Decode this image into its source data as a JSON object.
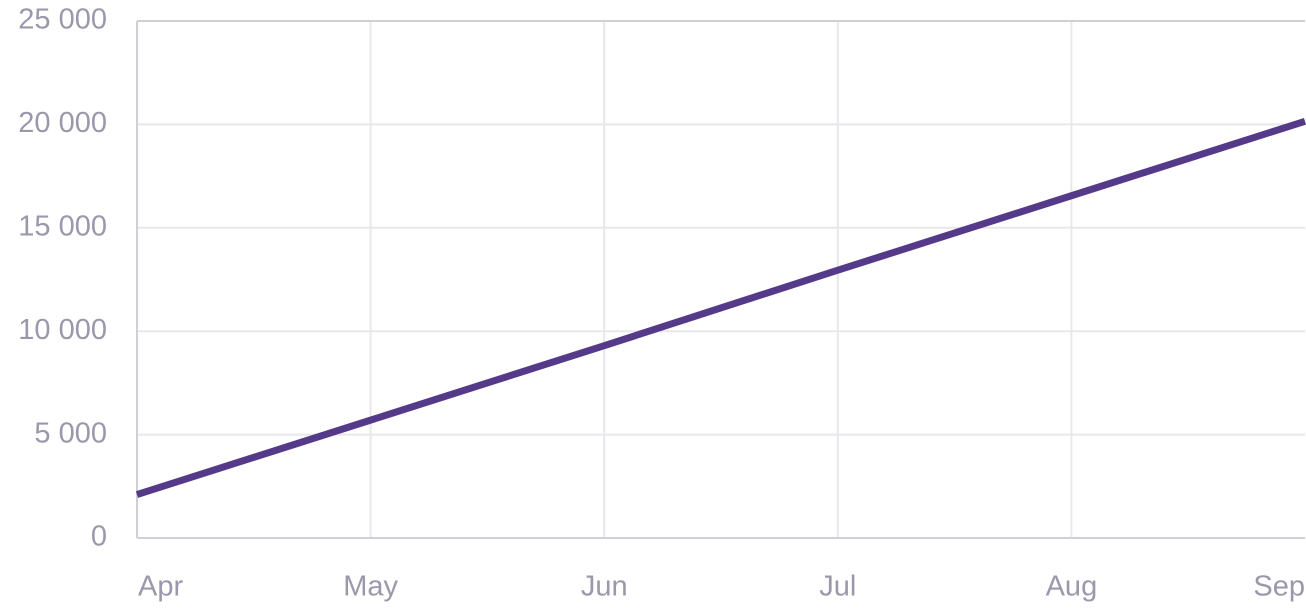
{
  "chart_data": {
    "type": "line",
    "title": "",
    "xlabel": "",
    "ylabel": "",
    "categories": [
      "Apr",
      "May",
      "Jun",
      "Jul",
      "Aug",
      "Sep"
    ],
    "series": [
      {
        "values": [
          2100,
          5700,
          9300,
          12950,
          16550,
          20150
        ]
      }
    ],
    "ylim": [
      0,
      25000
    ],
    "y_ticks": [
      0,
      5000,
      10000,
      15000,
      20000,
      25000
    ],
    "y_tick_labels": [
      "0",
      "5 000",
      "10 000",
      "15 000",
      "20 000",
      "25 000"
    ],
    "grid": true,
    "legend": "none",
    "colors": {
      "line": "#553a8a",
      "grid": "#e8e8ec",
      "axis": "#cfcfd6",
      "tick_text": "#9a98ab"
    }
  }
}
